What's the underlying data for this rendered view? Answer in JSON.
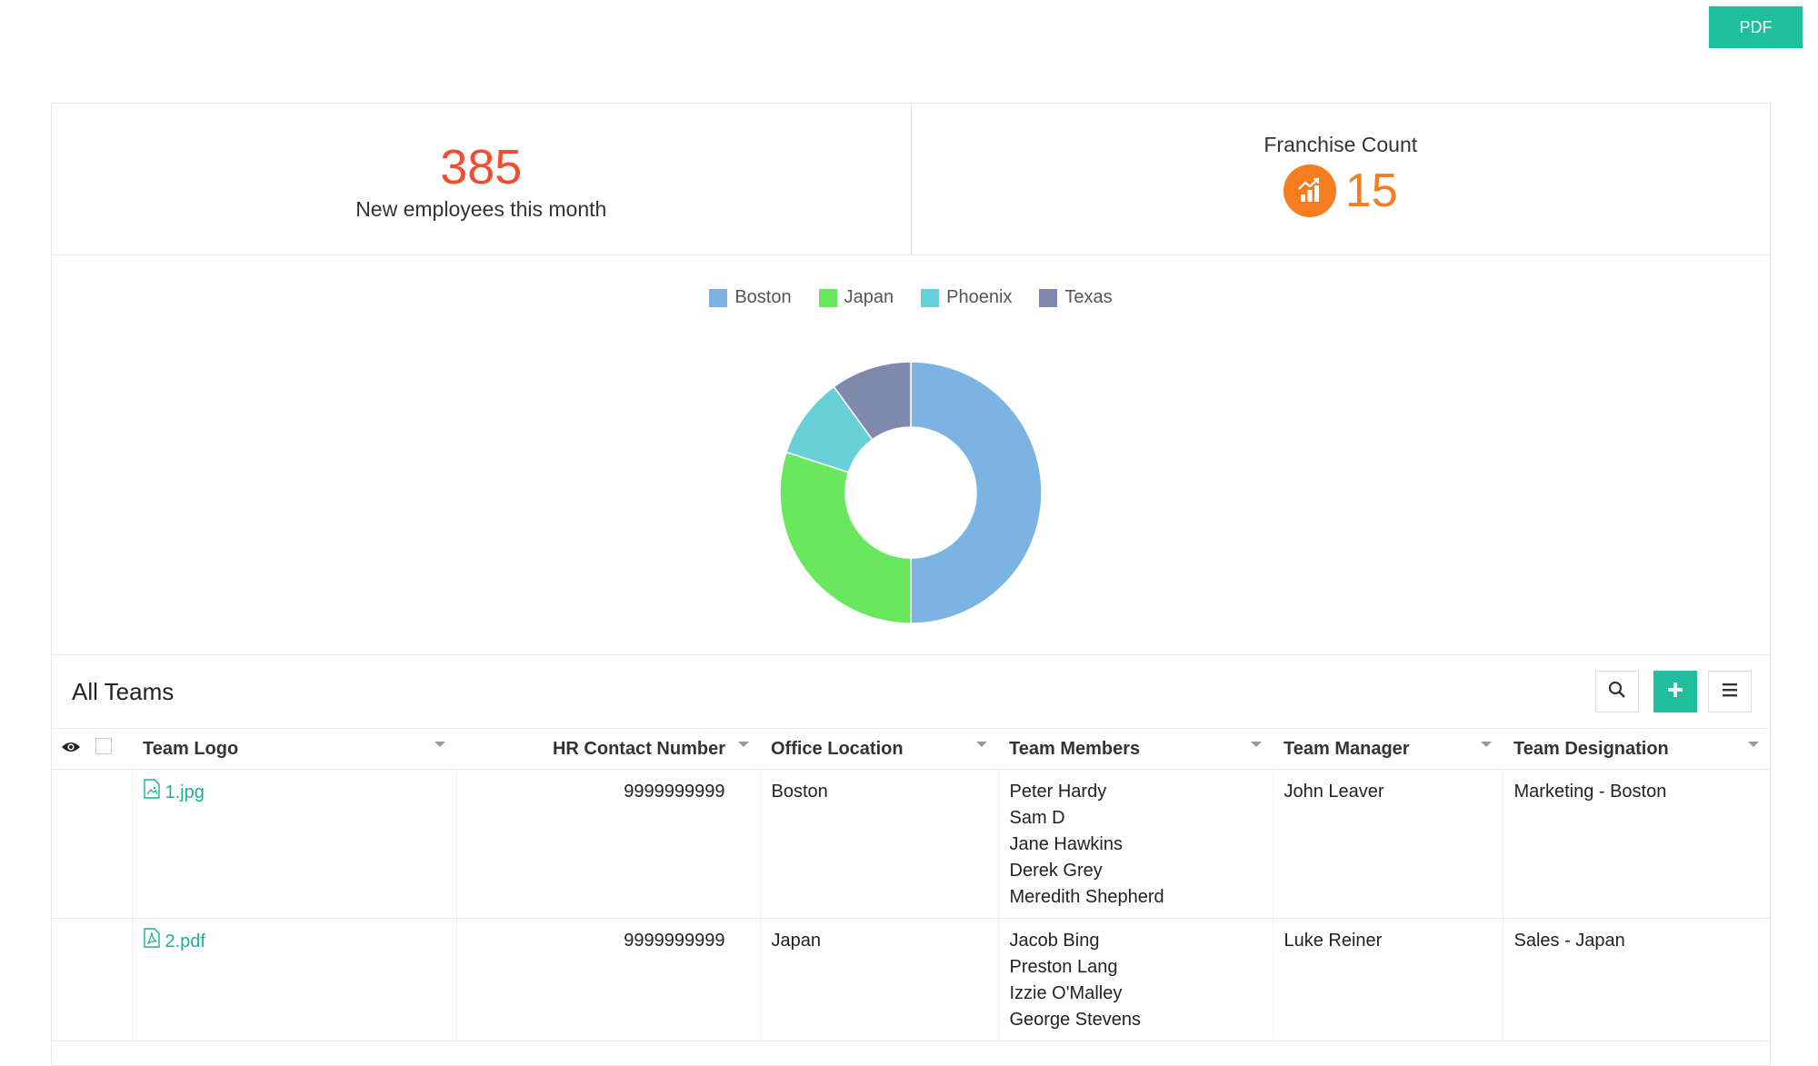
{
  "toolbar": {
    "pdf_label": "PDF"
  },
  "stats": {
    "new_employees": {
      "value": "385",
      "label": "New employees this month",
      "color": "#f04e30"
    },
    "franchise": {
      "title": "Franchise Count",
      "value": "15",
      "icon": "chart-growth-icon",
      "color": "#f57c1f"
    }
  },
  "chart_data": {
    "type": "pie",
    "donut": true,
    "legend_position": "top-center",
    "categories": [
      "Boston",
      "Japan",
      "Phoenix",
      "Texas"
    ],
    "values": [
      50,
      30,
      10,
      10
    ],
    "colors": [
      "#7bb4e2",
      "#6ae85d",
      "#66d0d6",
      "#7f88ad"
    ]
  },
  "teams": {
    "title": "All Teams",
    "tools": [
      "search-icon",
      "plus-icon",
      "menu-icon"
    ],
    "columns": [
      "Team Logo",
      "HR Contact Number",
      "Office Location",
      "Team Members",
      "Team Manager",
      "Team Designation"
    ],
    "rows": [
      {
        "logo": "1.jpg",
        "logo_icon": "image-file-icon",
        "hr_contact": "9999999999",
        "location": "Boston",
        "members": [
          "Peter Hardy",
          "Sam D",
          "Jane Hawkins",
          "Derek Grey",
          "Meredith Shepherd"
        ],
        "manager": "John Leaver",
        "designation": "Marketing - Boston"
      },
      {
        "logo": "2.pdf",
        "logo_icon": "pdf-file-icon",
        "hr_contact": "9999999999",
        "location": "Japan",
        "members": [
          "Jacob Bing",
          "Preston Lang",
          "Izzie O'Malley",
          "George Stevens"
        ],
        "manager": "Luke Reiner",
        "designation": "Sales - Japan"
      }
    ]
  }
}
